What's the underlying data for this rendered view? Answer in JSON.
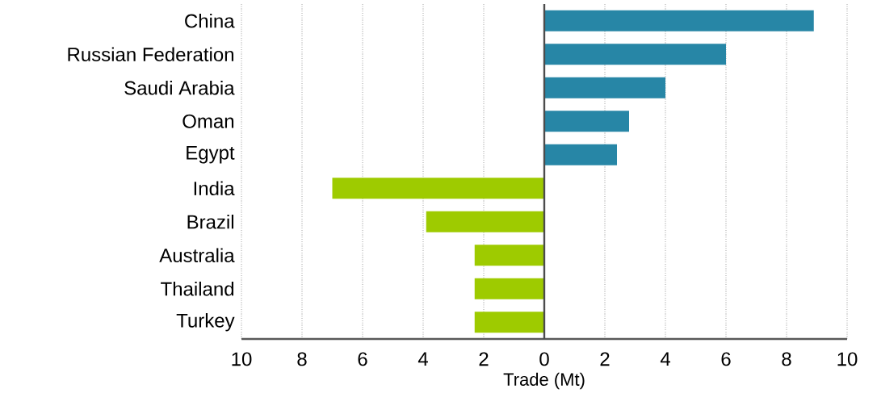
{
  "chart_data": {
    "type": "bar",
    "orientation": "horizontal",
    "xlabel": "Trade (Mt)",
    "categories": [
      "China",
      "Russian Federation",
      "Saudi Arabia",
      "Oman",
      "Egypt",
      "India",
      "Brazil",
      "Australia",
      "Thailand",
      "Turkey"
    ],
    "values": [
      8.9,
      6.0,
      4.0,
      2.8,
      2.4,
      -7.0,
      -3.9,
      -2.3,
      -2.3,
      -2.3
    ],
    "colors": [
      "#2786a6",
      "#2786a6",
      "#2786a6",
      "#2786a6",
      "#2786a6",
      "#9ecb00",
      "#9ecb00",
      "#9ecb00",
      "#9ecb00",
      "#9ecb00"
    ],
    "xlim": [
      -10,
      10
    ],
    "xticks": [
      {
        "value": -10,
        "label": "10"
      },
      {
        "value": -8,
        "label": "8"
      },
      {
        "value": -6,
        "label": "6"
      },
      {
        "value": -4,
        "label": "4"
      },
      {
        "value": -2,
        "label": "2"
      },
      0,
      2,
      4,
      6,
      8,
      10
    ],
    "grid": "x"
  }
}
